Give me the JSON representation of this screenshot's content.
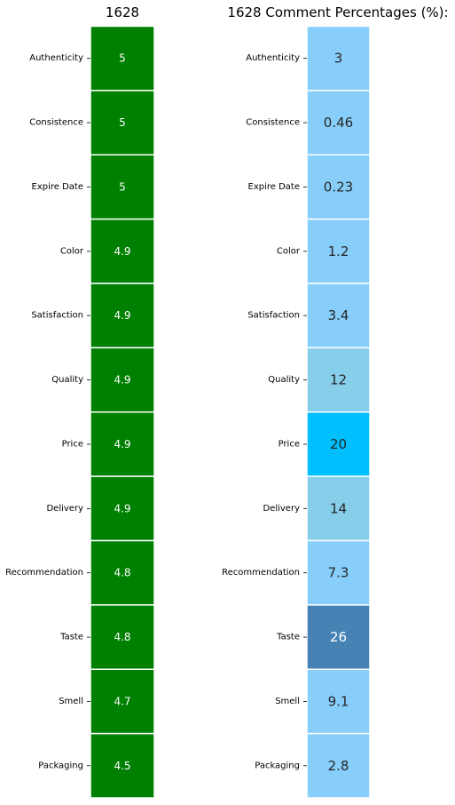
{
  "chart_data": [
    {
      "type": "heatmap",
      "title": "1628",
      "categories": [
        "Authenticity",
        "Consistence",
        "Expire Date",
        "Color",
        "Satisfaction",
        "Quality",
        "Price",
        "Delivery",
        "Recommendation",
        "Taste",
        "Smell",
        "Packaging"
      ],
      "values": [
        5,
        5,
        5,
        4.9,
        4.9,
        4.9,
        4.9,
        4.9,
        4.8,
        4.8,
        4.7,
        4.5
      ],
      "labels": [
        "5",
        "5",
        "5",
        "4.9",
        "4.9",
        "4.9",
        "4.9",
        "4.9",
        "4.8",
        "4.8",
        "4.7",
        "4.5"
      ],
      "cell_colors": [
        "#008000",
        "#008000",
        "#008000",
        "#008000",
        "#008000",
        "#008000",
        "#008000",
        "#008000",
        "#008000",
        "#008000",
        "#008000",
        "#008000"
      ],
      "label_color": "#ffffff"
    },
    {
      "type": "heatmap",
      "title": "1628 Comment Percentages (%):",
      "categories": [
        "Authenticity",
        "Consistence",
        "Expire Date",
        "Color",
        "Satisfaction",
        "Quality",
        "Price",
        "Delivery",
        "Recommendation",
        "Taste",
        "Smell",
        "Packaging"
      ],
      "values": [
        3,
        0.46,
        0.23,
        1.2,
        3.4,
        12,
        20,
        14,
        7.3,
        26,
        9.1,
        2.8
      ],
      "labels": [
        "3",
        "0.46",
        "0.23",
        "1.2",
        "3.4",
        "12",
        "20",
        "14",
        "7.3",
        "26",
        "9.1",
        "2.8"
      ],
      "cell_colors": [
        "#87cefa",
        "#87cefa",
        "#87cefa",
        "#87cefa",
        "#87cefa",
        "#87ceeb",
        "#00bfff",
        "#87ceeb",
        "#87cefa",
        "#4682b4",
        "#87cefa",
        "#87cefa"
      ],
      "label_colors": [
        "#262626",
        "#262626",
        "#262626",
        "#262626",
        "#262626",
        "#262626",
        "#262626",
        "#262626",
        "#262626",
        "#ffffff",
        "#262626",
        "#262626"
      ]
    }
  ]
}
